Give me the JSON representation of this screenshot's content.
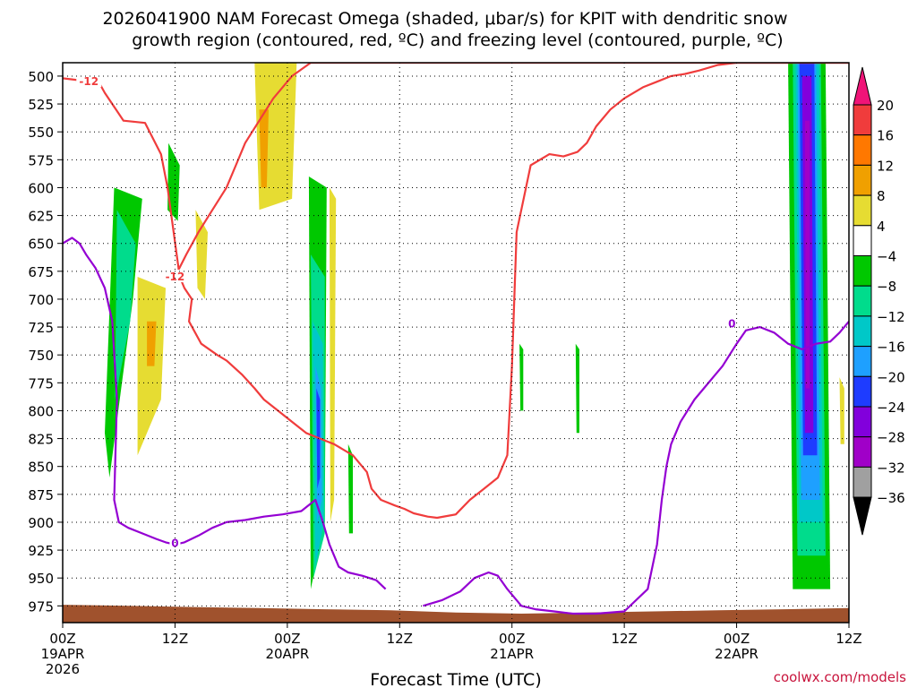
{
  "title_line1": "2026041900 NAM Forecast Omega (shaded, μbar/s) for KPIT with dendritic snow",
  "title_line2": "growth region (contoured, red, ºC) and freezing level (contoured, purple, ºC)",
  "credit": "coolwx.com/models",
  "colors": {
    "dgz": "#f03c3c",
    "freezing": "#9400d3",
    "terrain": "#a0522d",
    "grid": "#000000"
  },
  "chart_data": {
    "type": "heatmap",
    "xlabel": "Forecast Time (UTC)",
    "ylabel": "",
    "x_range_hours": [
      0,
      84
    ],
    "y_range_hPa": [
      488,
      990
    ],
    "y_ticks": [
      500,
      525,
      550,
      575,
      600,
      625,
      650,
      675,
      700,
      725,
      750,
      775,
      800,
      825,
      850,
      875,
      900,
      925,
      950,
      975
    ],
    "x_ticks": [
      {
        "h": 0,
        "l1": "00Z",
        "l2": "19APR",
        "l3": "2026"
      },
      {
        "h": 12,
        "l1": "12Z",
        "l2": "",
        "l3": ""
      },
      {
        "h": 24,
        "l1": "00Z",
        "l2": "20APR",
        "l3": ""
      },
      {
        "h": 36,
        "l1": "12Z",
        "l2": "",
        "l3": ""
      },
      {
        "h": 48,
        "l1": "00Z",
        "l2": "21APR",
        "l3": ""
      },
      {
        "h": 60,
        "l1": "12Z",
        "l2": "",
        "l3": ""
      },
      {
        "h": 72,
        "l1": "00Z",
        "l2": "22APR",
        "l3": ""
      },
      {
        "h": 84,
        "l1": "12Z",
        "l2": "",
        "l3": ""
      }
    ],
    "grid": "dotted",
    "colorbar": {
      "labels": [
        "20",
        "16",
        "12",
        "8",
        "4",
        "−4",
        "−8",
        "−12",
        "−16",
        "−20",
        "−24",
        "−28",
        "−32",
        "−36"
      ],
      "colors": [
        "#f01478",
        "#f03c3c",
        "#ff7800",
        "#f0a000",
        "#e6dc32",
        "#ffffff",
        "#00c800",
        "#00dc8c",
        "#00c8c8",
        "#1ea0ff",
        "#1e3cff",
        "#8200dc",
        "#a000c8",
        "#a0a0a0",
        "#000000"
      ]
    },
    "omega_regions": [
      {
        "level": -4,
        "x": [
          5.5,
          8.5,
          7.5,
          5.0,
          4.5
        ],
        "y": [
          600,
          610,
          700,
          860,
          820
        ]
      },
      {
        "level": -8,
        "x": [
          5.8,
          7.8,
          7.2,
          5.6
        ],
        "y": [
          620,
          650,
          720,
          790
        ]
      },
      {
        "level": -4,
        "x": [
          11.3,
          12.5,
          12.3,
          11.2
        ],
        "y": [
          560,
          580,
          630,
          620
        ]
      },
      {
        "level": 4,
        "x": [
          20.5,
          25.0,
          24.5,
          21.0
        ],
        "y": [
          488,
          488,
          610,
          620
        ]
      },
      {
        "level": 8,
        "x": [
          21.0,
          22.0,
          21.8,
          21.2
        ],
        "y": [
          530,
          530,
          600,
          600
        ]
      },
      {
        "level": 4,
        "x": [
          8.0,
          11.0,
          10.5,
          8.0
        ],
        "y": [
          680,
          690,
          790,
          840
        ]
      },
      {
        "level": 8,
        "x": [
          9.0,
          10.0,
          9.8,
          9.0
        ],
        "y": [
          720,
          720,
          760,
          760
        ]
      },
      {
        "level": 4,
        "x": [
          14.2,
          15.5,
          15.2,
          14.4
        ],
        "y": [
          620,
          640,
          700,
          690
        ]
      },
      {
        "level": -4,
        "x": [
          26.3,
          28.2,
          28.0,
          26.5
        ],
        "y": [
          590,
          600,
          900,
          960
        ]
      },
      {
        "level": -8,
        "x": [
          26.5,
          28.0,
          28.0,
          26.8
        ],
        "y": [
          660,
          680,
          910,
          950
        ]
      },
      {
        "level": -12,
        "x": [
          26.7,
          27.8,
          27.9,
          27.0
        ],
        "y": [
          720,
          740,
          900,
          940
        ]
      },
      {
        "level": -16,
        "x": [
          27.0,
          27.6,
          27.7,
          27.2
        ],
        "y": [
          760,
          780,
          880,
          900
        ]
      },
      {
        "level": -20,
        "x": [
          27.1,
          27.5,
          27.5,
          27.2
        ],
        "y": [
          780,
          790,
          860,
          870
        ]
      },
      {
        "level": 4,
        "x": [
          28.5,
          29.2,
          29.0,
          28.6
        ],
        "y": [
          600,
          610,
          880,
          900
        ]
      },
      {
        "level": -4,
        "x": [
          30.5,
          31.0,
          31.0,
          30.6
        ],
        "y": [
          830,
          840,
          910,
          910
        ]
      },
      {
        "level": -4,
        "x": [
          48.8,
          49.2,
          49.2,
          48.9
        ],
        "y": [
          740,
          745,
          800,
          800
        ]
      },
      {
        "level": -4,
        "x": [
          54.8,
          55.2,
          55.2,
          54.9
        ],
        "y": [
          740,
          745,
          820,
          820
        ]
      },
      {
        "level": -4,
        "x": [
          77.5,
          81.5,
          82.0,
          78.0
        ],
        "y": [
          488,
          488,
          960,
          960
        ]
      },
      {
        "level": -8,
        "x": [
          78.0,
          81.0,
          81.5,
          78.5
        ],
        "y": [
          488,
          488,
          930,
          930
        ]
      },
      {
        "level": -12,
        "x": [
          78.3,
          80.8,
          81.2,
          78.7
        ],
        "y": [
          488,
          488,
          900,
          900
        ]
      },
      {
        "level": -16,
        "x": [
          78.5,
          80.5,
          80.9,
          78.9
        ],
        "y": [
          488,
          488,
          880,
          880
        ]
      },
      {
        "level": -20,
        "x": [
          78.7,
          80.3,
          80.6,
          79.1
        ],
        "y": [
          488,
          488,
          840,
          840
        ]
      },
      {
        "level": -24,
        "x": [
          79.0,
          80.0,
          80.2,
          79.3
        ],
        "y": [
          500,
          500,
          820,
          820
        ]
      },
      {
        "level": -28,
        "x": [
          79.3,
          79.8,
          79.8,
          79.4
        ],
        "y": [
          540,
          540,
          780,
          780
        ]
      },
      {
        "level": 4,
        "x": [
          83.0,
          83.5,
          83.5,
          83.1
        ],
        "y": [
          770,
          780,
          830,
          830
        ]
      }
    ],
    "contours": [
      {
        "series": "dgz",
        "label": "-12",
        "label_at": [
          2.8,
          505
        ],
        "x": [
          0,
          2,
          3.5,
          4.5,
          6.5,
          8.8,
          10.5,
          11.2,
          12.5,
          13.0,
          13.8,
          13.5,
          14.8,
          16.5,
          17.5,
          19.2,
          20.5,
          21.5,
          23.0,
          24.5,
          26.0,
          27.5,
          29.0,
          31.0,
          32.5,
          33.0,
          34.0,
          35.5,
          36.5,
          37.5,
          39.0,
          40.0,
          42.0,
          43.5,
          45.0,
          46.5,
          47.5,
          48.0,
          48.5,
          50.0,
          52.0,
          53.5,
          55.0,
          56.0,
          57.0,
          58.5,
          60.0,
          62.0,
          63.5,
          65.0,
          66.5,
          68.0,
          70.0,
          72.0,
          74.0,
          76.0,
          77.5,
          79.0,
          80.5,
          82.0,
          84.0
        ],
        "y": [
          502,
          504,
          500,
          515,
          540,
          542,
          570,
          600,
          680,
          690,
          700,
          720,
          740,
          750,
          755,
          768,
          780,
          790,
          800,
          810,
          820,
          825,
          830,
          840,
          855,
          870,
          880,
          885,
          888,
          892,
          895,
          896,
          893,
          880,
          870,
          860,
          840,
          760,
          640,
          580,
          570,
          572,
          568,
          560,
          545,
          530,
          520,
          510,
          505,
          500,
          498,
          495,
          490,
          488,
          488,
          488,
          488,
          488,
          488,
          488,
          488
        ]
      },
      {
        "series": "dgz",
        "label": "-12",
        "label_at": [
          12.0,
          680
        ],
        "x": [
          12.0,
          13.2,
          14.5,
          16.0,
          17.5,
          18.5,
          19.5,
          21.0,
          22.5,
          24.5,
          26.5,
          28.0,
          29.5,
          30.5,
          31.5,
          32.5,
          33.5,
          34.5,
          36.0,
          37.5,
          38.5,
          39.0,
          39.5,
          40.5,
          42.0,
          43.5,
          44.5,
          45.5,
          46.5,
          47.5,
          48.5,
          49.5,
          50.5,
          51.5,
          52.5,
          53.5,
          54.5,
          56.0,
          57.5,
          59.0,
          60.5,
          61.5,
          63.0,
          64.5,
          66.0,
          67.5,
          69.0,
          70.5,
          72.0,
          74.0,
          75.5,
          77.0,
          78.0,
          79.0,
          80.0,
          81.0,
          82.0,
          83.0,
          84.0
        ],
        "y": [
          680,
          660,
          640,
          620,
          600,
          580,
          560,
          540,
          520,
          500,
          488,
          488,
          488,
          488,
          488,
          488,
          488,
          488,
          488,
          488,
          488,
          488,
          488,
          488,
          488,
          488,
          488,
          488,
          488,
          488,
          488,
          488,
          488,
          488,
          488,
          488,
          488,
          488,
          488,
          488,
          488,
          488,
          488,
          488,
          488,
          488,
          488,
          488,
          488,
          488,
          488,
          488,
          488,
          488,
          488,
          488,
          488,
          488,
          488
        ]
      },
      {
        "series": "freezing",
        "label": "0",
        "label_at": [
          12.0,
          919
        ],
        "x": [
          0,
          1.0,
          1.8,
          2.5,
          3.5,
          4.5,
          5.3,
          5.8,
          5.5,
          6.0,
          7.0,
          8.5,
          10.0,
          11.0,
          12.0,
          13.0,
          14.5,
          16.0,
          17.5,
          19.5,
          21.5,
          23.5,
          25.5,
          27.0,
          27.8,
          28.5,
          29.5,
          30.5,
          32.0,
          33.5,
          34.5
        ],
        "y": [
          650,
          645,
          650,
          660,
          672,
          690,
          720,
          790,
          880,
          900,
          905,
          910,
          915,
          918,
          920,
          918,
          912,
          905,
          900,
          898,
          895,
          893,
          890,
          880,
          900,
          920,
          940,
          945,
          948,
          952,
          960
        ]
      },
      {
        "series": "freezing",
        "label": "0",
        "label_at": [
          71.5,
          722
        ],
        "x": [
          38.5,
          40.5,
          42.5,
          44.0,
          45.5,
          46.5,
          47.5,
          49.0,
          50.5,
          52.5,
          54.5,
          57.0,
          60.0,
          62.5,
          63.5,
          64.0,
          64.5,
          65.0,
          66.0,
          67.5,
          68.5,
          69.5,
          70.5,
          72.0,
          73.0,
          74.5,
          76.0,
          77.5,
          79.0,
          80.5,
          82.0,
          83.0,
          84.0
        ],
        "y": [
          975,
          970,
          962,
          950,
          945,
          948,
          960,
          975,
          978,
          980,
          982,
          982,
          980,
          960,
          920,
          880,
          850,
          830,
          810,
          790,
          780,
          770,
          760,
          740,
          728,
          725,
          730,
          740,
          745,
          740,
          738,
          730,
          720
        ]
      }
    ],
    "terrain_surface_hPa": [
      974,
      975,
      976,
      977,
      978,
      979,
      981,
      982,
      981,
      980,
      979,
      978,
      977
    ]
  }
}
